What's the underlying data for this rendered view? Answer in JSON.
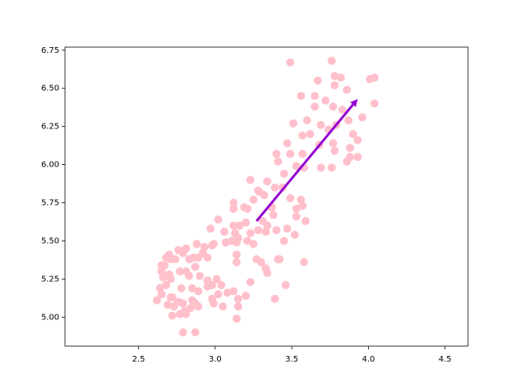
{
  "chart_data": {
    "type": "scatter",
    "x": [
      3.49,
      3.76,
      4.01,
      4.04,
      3.78,
      3.82,
      3.67,
      3.86,
      3.78,
      3.56,
      3.65,
      3.72,
      4.04,
      3.6,
      3.96,
      3.77,
      3.83,
      3.65,
      3.69,
      3.74,
      3.79,
      3.87,
      3.9,
      3.93,
      3.88,
      3.93,
      3.77,
      3.57,
      3.62,
      3.51,
      3.47,
      3.49,
      3.41,
      3.57,
      3.58,
      3.69,
      3.76,
      3.86,
      3.88,
      3.78,
      3.68,
      3.53,
      3.45,
      3.44,
      3.34,
      3.4,
      3.39,
      3.32,
      3.29,
      3.23,
      3.28,
      3.25,
      3.19,
      3.21,
      3.12,
      3.12,
      3.16,
      3.13,
      3.02,
      2.97,
      3.06,
      3.12,
      3.2,
      3.31,
      3.28,
      3.33,
      3.23,
      3.4,
      3.45,
      3.47,
      3.52,
      3.57,
      3.53,
      3.49,
      3.56,
      3.59,
      3.53,
      3.37,
      3.38,
      3.34,
      3.25,
      3.21,
      3.15,
      3.14,
      3.14,
      3.14,
      3.11,
      3.07,
      2.98,
      2.99,
      2.95,
      2.93,
      2.92,
      2.89,
      2.86,
      2.83,
      2.87,
      2.77,
      2.7,
      2.68,
      2.67,
      2.71,
      2.81,
      2.76,
      2.79,
      2.88,
      2.81,
      2.65,
      2.65,
      2.74,
      2.66,
      2.7,
      2.64,
      2.68,
      2.71,
      2.65,
      2.83,
      2.85,
      2.9,
      2.95,
      3.01,
      3.04,
      2.98,
      2.95,
      2.98,
      3.02,
      3.08,
      3.05,
      2.99,
      2.89,
      2.87,
      2.89,
      2.85,
      2.78,
      2.79,
      2.81,
      2.84,
      2.76,
      2.73,
      2.71,
      2.69,
      2.62,
      2.72,
      2.77,
      2.79,
      2.87,
      2.8,
      3.14,
      3.12,
      3.15,
      3.2,
      3.23,
      3.15,
      3.39,
      3.46,
      3.58,
      3.27,
      3.3,
      3.33,
      3.41,
      3.34,
      3.42,
      2.72
    ],
    "y": [
      6.67,
      6.68,
      6.56,
      6.57,
      6.58,
      6.57,
      6.55,
      6.49,
      6.52,
      6.45,
      6.45,
      6.42,
      6.4,
      6.29,
      6.31,
      6.38,
      6.36,
      6.38,
      6.26,
      6.23,
      6.26,
      6.29,
      6.2,
      6.16,
      6.11,
      6.05,
      6.14,
      6.19,
      6.2,
      6.27,
      6.14,
      6.07,
      6.02,
      6.07,
      5.98,
      5.98,
      5.98,
      6.02,
      6.05,
      6.09,
      6.13,
      5.99,
      5.94,
      5.85,
      5.89,
      6.07,
      5.85,
      5.8,
      5.82,
      5.9,
      5.83,
      5.77,
      5.72,
      5.71,
      5.75,
      5.71,
      5.6,
      5.55,
      5.64,
      5.58,
      5.56,
      5.6,
      5.62,
      5.63,
      5.57,
      5.56,
      5.55,
      5.57,
      5.5,
      5.58,
      5.54,
      5.73,
      5.71,
      5.78,
      5.77,
      5.63,
      5.66,
      5.72,
      5.67,
      5.6,
      5.48,
      5.5,
      5.52,
      5.49,
      5.41,
      5.36,
      5.5,
      5.49,
      5.47,
      5.48,
      5.39,
      5.46,
      5.42,
      5.39,
      5.39,
      5.38,
      5.33,
      5.3,
      5.41,
      5.39,
      5.34,
      5.38,
      5.3,
      5.44,
      5.42,
      5.48,
      5.45,
      5.34,
      5.3,
      5.38,
      5.26,
      5.28,
      5.19,
      5.21,
      5.25,
      5.15,
      5.27,
      5.19,
      5.27,
      5.24,
      5.25,
      5.21,
      5.21,
      5.2,
      5.12,
      5.15,
      5.16,
      5.07,
      5.09,
      5.17,
      5.09,
      5.07,
      5.11,
      5.19,
      5.09,
      5.02,
      5.06,
      5.1,
      5.07,
      5.13,
      5.08,
      5.11,
      5.01,
      5.02,
      4.9,
      4.9,
      5.04,
      4.99,
      5.17,
      5.12,
      5.14,
      5.23,
      5.07,
      5.12,
      5.21,
      5.36,
      5.38,
      5.36,
      5.32,
      5.38,
      5.29,
      5.38,
      5.13
    ],
    "color": "#ffc0cb",
    "arrow": {
      "x": [
        3.27,
        3.93
      ],
      "y": [
        5.63,
        6.43
      ],
      "color": "#9400d3"
    },
    "xlim": [
      2.02,
      4.65
    ],
    "ylim": [
      4.81,
      6.77
    ],
    "xticks": [
      2.5,
      {
        "value": 3,
        "label": "3.0"
      },
      3.5,
      {
        "value": 4,
        "label": "4.0"
      },
      4.5
    ],
    "yticks": [
      {
        "value": 5,
        "label": "5.00"
      },
      5.25,
      {
        "value": 5.5,
        "label": "5.50"
      },
      5.75,
      {
        "value": 6,
        "label": "6.00"
      },
      6.25,
      {
        "value": 6.5,
        "label": "6.50"
      },
      6.75
    ]
  }
}
